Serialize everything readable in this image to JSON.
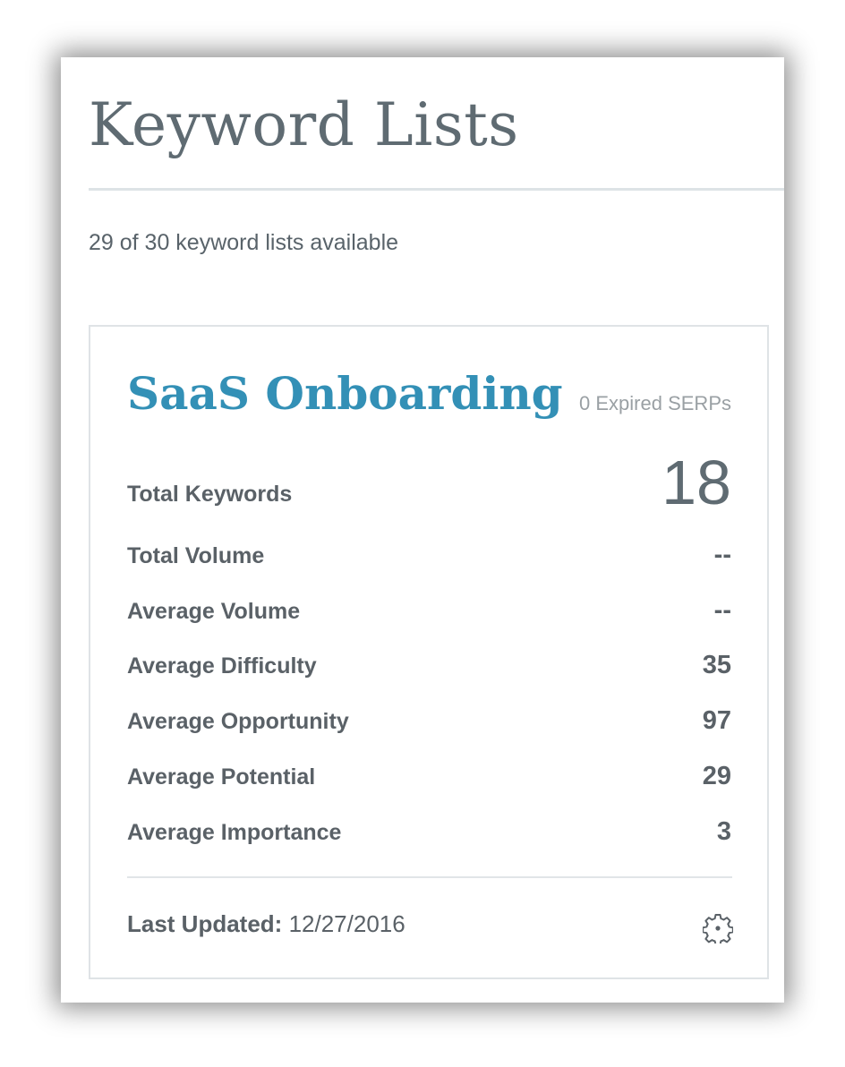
{
  "header": {
    "title": "Keyword Lists",
    "availability": "29 of 30 keyword lists available"
  },
  "card": {
    "title": "SaaS Onboarding",
    "expired": "0 Expired SERPs",
    "stats": [
      {
        "label": "Total Keywords",
        "value": "18"
      },
      {
        "label": "Total Volume",
        "value": "--"
      },
      {
        "label": "Average Volume",
        "value": "--"
      },
      {
        "label": "Average Difficulty",
        "value": "35"
      },
      {
        "label": "Average Opportunity",
        "value": "97"
      },
      {
        "label": "Average Potential",
        "value": "29"
      },
      {
        "label": "Average Importance",
        "value": "3"
      }
    ],
    "footer": {
      "label": "Last Updated:",
      "date": "12/27/2016",
      "settings_icon": "gear-icon"
    }
  },
  "colors": {
    "accent": "#3390b6",
    "text": "#5a6167",
    "muted": "#9aa0a4"
  }
}
